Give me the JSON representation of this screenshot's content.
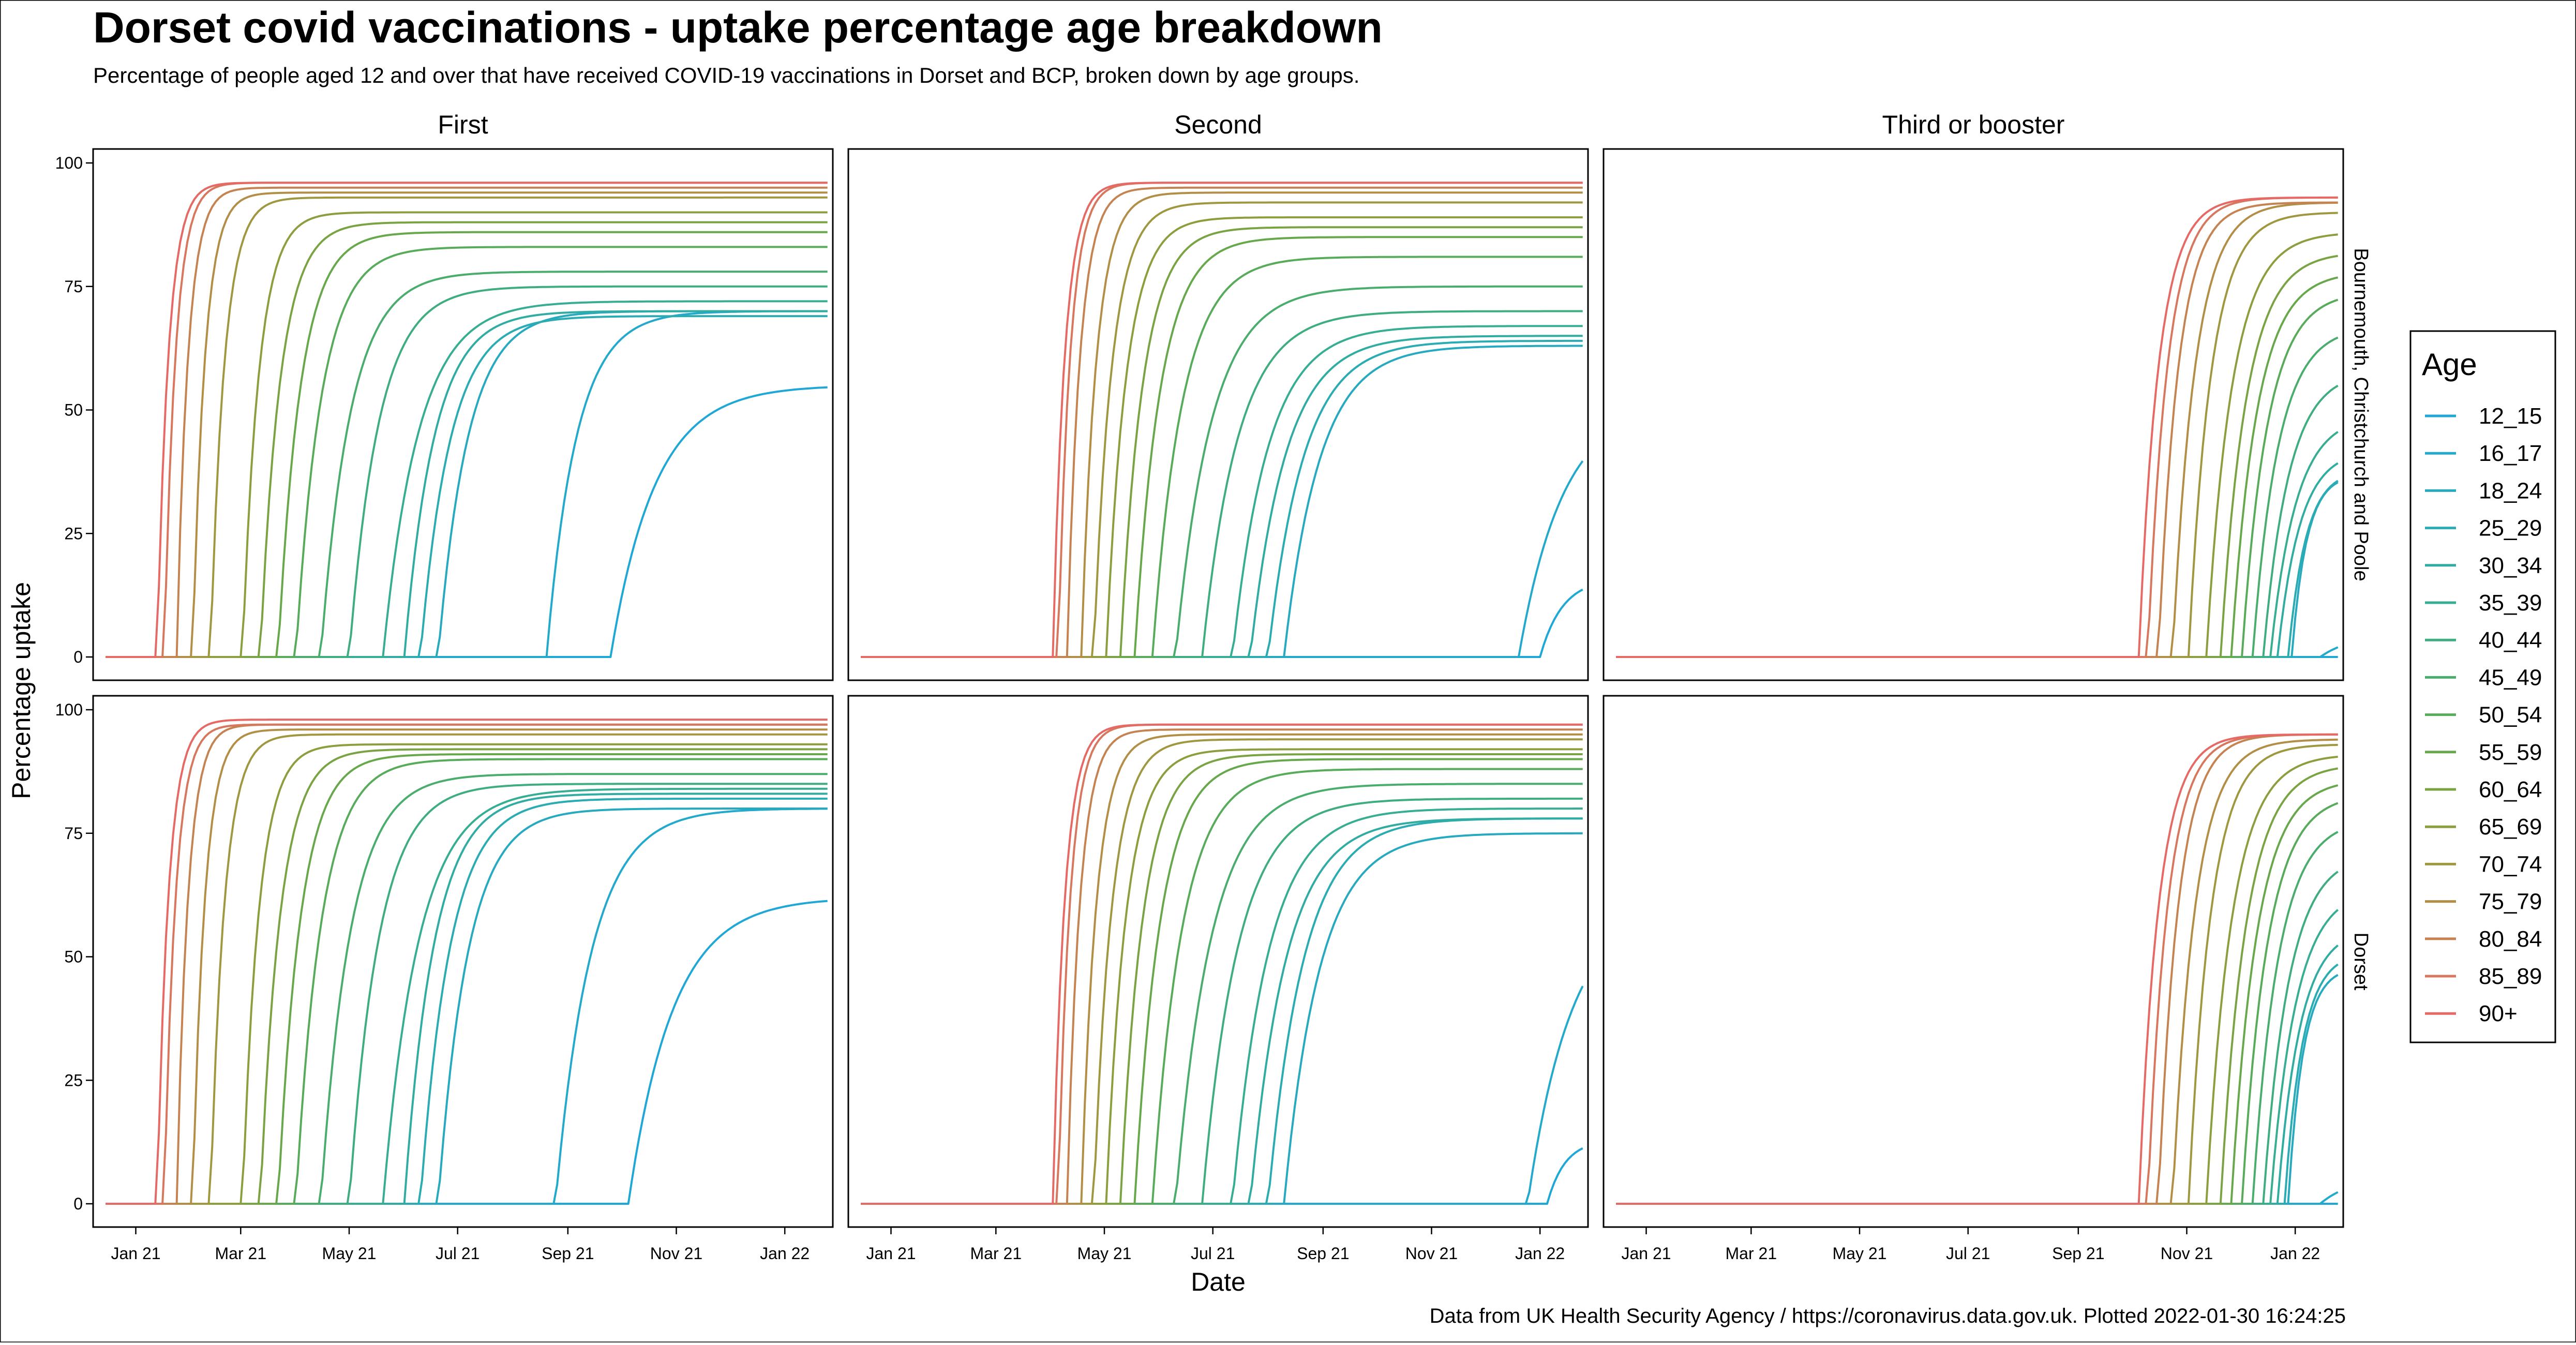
{
  "chart_data": {
    "type": "line",
    "title": "Dorset covid vaccinations - uptake percentage age breakdown",
    "subtitle": "Percentage of people aged 12 and over that have received COVID-19 vaccinations in Dorset and BCP, broken down by age groups.",
    "caption": "Data from UK Health Security Agency / https://coronavirus.data.gov.uk. Plotted 2022-01-30 16:24:25",
    "xlabel": "Date",
    "ylabel": "Percentage uptake",
    "ylim": [
      0,
      100
    ],
    "y_ticks": [
      0,
      25,
      50,
      75,
      100
    ],
    "x_range": [
      "2020-12-08",
      "2022-01-28"
    ],
    "x_ticks": [
      {
        "label": "Jan 21",
        "date": "2021-01-01"
      },
      {
        "label": "Mar 21",
        "date": "2021-03-01"
      },
      {
        "label": "May 21",
        "date": "2021-05-01"
      },
      {
        "label": "Jul 21",
        "date": "2021-07-01"
      },
      {
        "label": "Sep 21",
        "date": "2021-09-01"
      },
      {
        "label": "Nov 21",
        "date": "2021-11-01"
      },
      {
        "label": "Jan 22",
        "date": "2022-01-01"
      }
    ],
    "columns": [
      "First",
      "Second",
      "Third or booster"
    ],
    "rows": [
      "Bournemouth, Christchurch and Poole",
      "Dorset"
    ],
    "legend": {
      "title": "Age",
      "position": "right",
      "entries": [
        "12_15",
        "16_17",
        "18_24",
        "25_29",
        "30_34",
        "35_39",
        "40_44",
        "45_49",
        "50_54",
        "55_59",
        "60_64",
        "65_69",
        "70_74",
        "75_79",
        "80_84",
        "85_89",
        "90+"
      ],
      "colors": [
        "#1fa7d6",
        "#22a9cc",
        "#27aabf",
        "#2babb2",
        "#31aca2",
        "#37ad92",
        "#3fad80",
        "#4aad6d",
        "#58ab5a",
        "#68a84c",
        "#7aa443",
        "#8c9f3f",
        "#9f9840",
        "#b28e47",
        "#c58352",
        "#d6775e",
        "#e56a66"
      ]
    },
    "series": [
      {
        "name": "12_15",
        "first": {
          "BCP": {
            "start": "2021-09-25",
            "k": 0.04,
            "final": 55
          },
          "Dorset": {
            "start": "2021-10-05",
            "k": 0.04,
            "final": 62
          }
        },
        "second": {
          "BCP": {
            "start": "2022-01-01",
            "k": 0.08,
            "final": 16
          },
          "Dorset": {
            "start": "2022-01-05",
            "k": 0.1,
            "final": 13
          }
        },
        "third": {
          "BCP": {
            "start": "2022-02-15",
            "k": 0.05,
            "final": 0
          },
          "Dorset": {
            "start": "2022-02-15",
            "k": 0.05,
            "final": 0
          }
        }
      },
      {
        "name": "16_17",
        "first": {
          "BCP": {
            "start": "2021-08-20",
            "k": 0.06,
            "final": 70
          },
          "Dorset": {
            "start": "2021-08-25",
            "k": 0.05,
            "final": 80
          }
        },
        "second": {
          "BCP": {
            "start": "2021-12-20",
            "k": 0.04,
            "final": 52
          },
          "Dorset": {
            "start": "2021-12-25",
            "k": 0.04,
            "final": 62
          }
        },
        "third": {
          "BCP": {
            "start": "2022-01-15",
            "k": 0.05,
            "final": 5
          },
          "Dorset": {
            "start": "2022-01-15",
            "k": 0.05,
            "final": 6
          }
        }
      },
      {
        "name": "18_24",
        "first": {
          "BCP": {
            "start": "2021-06-20",
            "k": 0.06,
            "final": 70
          },
          "Dorset": {
            "start": "2021-06-20",
            "k": 0.06,
            "final": 80
          }
        },
        "second": {
          "BCP": {
            "start": "2021-08-10",
            "k": 0.05,
            "final": 63
          },
          "Dorset": {
            "start": "2021-08-10",
            "k": 0.05,
            "final": 75
          }
        },
        "third": {
          "BCP": {
            "start": "2021-12-30",
            "k": 0.12,
            "final": 37
          },
          "Dorset": {
            "start": "2021-12-28",
            "k": 0.12,
            "final": 48
          }
        }
      },
      {
        "name": "25_29",
        "first": {
          "BCP": {
            "start": "2021-06-10",
            "k": 0.06,
            "final": 69
          },
          "Dorset": {
            "start": "2021-06-10",
            "k": 0.06,
            "final": 82
          }
        },
        "second": {
          "BCP": {
            "start": "2021-08-01",
            "k": 0.05,
            "final": 64
          },
          "Dorset": {
            "start": "2021-08-01",
            "k": 0.05,
            "final": 78
          }
        },
        "third": {
          "BCP": {
            "start": "2021-12-28",
            "k": 0.1,
            "final": 38
          },
          "Dorset": {
            "start": "2021-12-26",
            "k": 0.1,
            "final": 51
          }
        }
      },
      {
        "name": "30_34",
        "first": {
          "BCP": {
            "start": "2021-06-01",
            "k": 0.06,
            "final": 70
          },
          "Dorset": {
            "start": "2021-06-01",
            "k": 0.06,
            "final": 83
          }
        },
        "second": {
          "BCP": {
            "start": "2021-07-22",
            "k": 0.05,
            "final": 65
          },
          "Dorset": {
            "start": "2021-07-22",
            "k": 0.05,
            "final": 78
          }
        },
        "third": {
          "BCP": {
            "start": "2021-12-22",
            "k": 0.08,
            "final": 42
          },
          "Dorset": {
            "start": "2021-12-22",
            "k": 0.08,
            "final": 56
          }
        }
      },
      {
        "name": "35_39",
        "first": {
          "BCP": {
            "start": "2021-05-20",
            "k": 0.05,
            "final": 72
          },
          "Dorset": {
            "start": "2021-05-20",
            "k": 0.05,
            "final": 84
          }
        },
        "second": {
          "BCP": {
            "start": "2021-07-12",
            "k": 0.05,
            "final": 67
          },
          "Dorset": {
            "start": "2021-07-12",
            "k": 0.05,
            "final": 80
          }
        },
        "third": {
          "BCP": {
            "start": "2021-12-18",
            "k": 0.07,
            "final": 49
          },
          "Dorset": {
            "start": "2021-12-18",
            "k": 0.07,
            "final": 64
          }
        }
      },
      {
        "name": "40_44",
        "first": {
          "BCP": {
            "start": "2021-05-01",
            "k": 0.06,
            "final": 75
          },
          "Dorset": {
            "start": "2021-05-01",
            "k": 0.06,
            "final": 85
          }
        },
        "second": {
          "BCP": {
            "start": "2021-06-25",
            "k": 0.05,
            "final": 70
          },
          "Dorset": {
            "start": "2021-06-25",
            "k": 0.05,
            "final": 82
          }
        },
        "third": {
          "BCP": {
            "start": "2021-12-14",
            "k": 0.07,
            "final": 58
          },
          "Dorset": {
            "start": "2021-12-14",
            "k": 0.07,
            "final": 71
          }
        }
      },
      {
        "name": "45_49",
        "first": {
          "BCP": {
            "start": "2021-04-15",
            "k": 0.06,
            "final": 78
          },
          "Dorset": {
            "start": "2021-04-15",
            "k": 0.06,
            "final": 87
          }
        },
        "second": {
          "BCP": {
            "start": "2021-06-10",
            "k": 0.05,
            "final": 75
          },
          "Dorset": {
            "start": "2021-06-10",
            "k": 0.05,
            "final": 85
          }
        },
        "third": {
          "BCP": {
            "start": "2021-12-08",
            "k": 0.07,
            "final": 67
          },
          "Dorset": {
            "start": "2021-12-08",
            "k": 0.07,
            "final": 78
          }
        }
      },
      {
        "name": "50_54",
        "first": {
          "BCP": {
            "start": "2021-04-01",
            "k": 0.07,
            "final": 83
          },
          "Dorset": {
            "start": "2021-04-01",
            "k": 0.07,
            "final": 90
          }
        },
        "second": {
          "BCP": {
            "start": "2021-05-28",
            "k": 0.06,
            "final": 81
          },
          "Dorset": {
            "start": "2021-05-28",
            "k": 0.06,
            "final": 88
          }
        },
        "third": {
          "BCP": {
            "start": "2021-12-02",
            "k": 0.07,
            "final": 74
          },
          "Dorset": {
            "start": "2021-12-02",
            "k": 0.07,
            "final": 83
          }
        }
      },
      {
        "name": "55_59",
        "first": {
          "BCP": {
            "start": "2021-03-22",
            "k": 0.08,
            "final": 86
          },
          "Dorset": {
            "start": "2021-03-22",
            "k": 0.08,
            "final": 91
          }
        },
        "second": {
          "BCP": {
            "start": "2021-05-18",
            "k": 0.07,
            "final": 85
          },
          "Dorset": {
            "start": "2021-05-18",
            "k": 0.07,
            "final": 90
          }
        },
        "third": {
          "BCP": {
            "start": "2021-11-26",
            "k": 0.07,
            "final": 78
          },
          "Dorset": {
            "start": "2021-11-26",
            "k": 0.07,
            "final": 86
          }
        }
      },
      {
        "name": "60_64",
        "first": {
          "BCP": {
            "start": "2021-03-12",
            "k": 0.09,
            "final": 88
          },
          "Dorset": {
            "start": "2021-03-12",
            "k": 0.09,
            "final": 92
          }
        },
        "second": {
          "BCP": {
            "start": "2021-05-10",
            "k": 0.08,
            "final": 87
          },
          "Dorset": {
            "start": "2021-05-10",
            "k": 0.08,
            "final": 91
          }
        },
        "third": {
          "BCP": {
            "start": "2021-11-20",
            "k": 0.07,
            "final": 82
          },
          "Dorset": {
            "start": "2021-11-20",
            "k": 0.07,
            "final": 89
          }
        }
      },
      {
        "name": "65_69",
        "first": {
          "BCP": {
            "start": "2021-03-02",
            "k": 0.11,
            "final": 90
          },
          "Dorset": {
            "start": "2021-03-02",
            "k": 0.11,
            "final": 93
          }
        },
        "second": {
          "BCP": {
            "start": "2021-05-02",
            "k": 0.09,
            "final": 89
          },
          "Dorset": {
            "start": "2021-05-02",
            "k": 0.09,
            "final": 92
          }
        },
        "third": {
          "BCP": {
            "start": "2021-11-12",
            "k": 0.07,
            "final": 86
          },
          "Dorset": {
            "start": "2021-11-12",
            "k": 0.07,
            "final": 91
          }
        }
      },
      {
        "name": "70_74",
        "first": {
          "BCP": {
            "start": "2021-02-12",
            "k": 0.13,
            "final": 93
          },
          "Dorset": {
            "start": "2021-02-12",
            "k": 0.13,
            "final": 95
          }
        },
        "second": {
          "BCP": {
            "start": "2021-04-25",
            "k": 0.1,
            "final": 92
          },
          "Dorset": {
            "start": "2021-04-25",
            "k": 0.1,
            "final": 94
          }
        },
        "third": {
          "BCP": {
            "start": "2021-11-02",
            "k": 0.08,
            "final": 90
          },
          "Dorset": {
            "start": "2021-11-02",
            "k": 0.08,
            "final": 93
          }
        }
      },
      {
        "name": "75_79",
        "first": {
          "BCP": {
            "start": "2021-02-02",
            "k": 0.15,
            "final": 94
          },
          "Dorset": {
            "start": "2021-02-02",
            "k": 0.15,
            "final": 96
          }
        },
        "second": {
          "BCP": {
            "start": "2021-04-18",
            "k": 0.12,
            "final": 94
          },
          "Dorset": {
            "start": "2021-04-18",
            "k": 0.12,
            "final": 95
          }
        },
        "third": {
          "BCP": {
            "start": "2021-10-24",
            "k": 0.08,
            "final": 92
          },
          "Dorset": {
            "start": "2021-10-24",
            "k": 0.08,
            "final": 94
          }
        }
      },
      {
        "name": "80_84",
        "first": {
          "BCP": {
            "start": "2021-01-24",
            "k": 0.16,
            "final": 95
          },
          "Dorset": {
            "start": "2021-01-24",
            "k": 0.16,
            "final": 97
          }
        },
        "second": {
          "BCP": {
            "start": "2021-04-10",
            "k": 0.14,
            "final": 95
          },
          "Dorset": {
            "start": "2021-04-10",
            "k": 0.14,
            "final": 96
          }
        },
        "third": {
          "BCP": {
            "start": "2021-10-16",
            "k": 0.09,
            "final": 92
          },
          "Dorset": {
            "start": "2021-10-16",
            "k": 0.09,
            "final": 95
          }
        }
      },
      {
        "name": "85_89",
        "first": {
          "BCP": {
            "start": "2021-01-17",
            "k": 0.16,
            "final": 96
          },
          "Dorset": {
            "start": "2021-01-17",
            "k": 0.16,
            "final": 97
          }
        },
        "second": {
          "BCP": {
            "start": "2021-04-05",
            "k": 0.15,
            "final": 96
          },
          "Dorset": {
            "start": "2021-04-05",
            "k": 0.15,
            "final": 97
          }
        },
        "third": {
          "BCP": {
            "start": "2021-10-10",
            "k": 0.09,
            "final": 93
          },
          "Dorset": {
            "start": "2021-10-10",
            "k": 0.09,
            "final": 95
          }
        }
      },
      {
        "name": "90+",
        "first": {
          "BCP": {
            "start": "2021-01-13",
            "k": 0.16,
            "final": 96
          },
          "Dorset": {
            "start": "2021-01-13",
            "k": 0.16,
            "final": 98
          }
        },
        "second": {
          "BCP": {
            "start": "2021-04-02",
            "k": 0.15,
            "final": 96
          },
          "Dorset": {
            "start": "2021-04-02",
            "k": 0.15,
            "final": 97
          }
        },
        "third": {
          "BCP": {
            "start": "2021-10-05",
            "k": 0.09,
            "final": 93
          },
          "Dorset": {
            "start": "2021-10-05",
            "k": 0.09,
            "final": 95
          }
        }
      }
    ]
  }
}
